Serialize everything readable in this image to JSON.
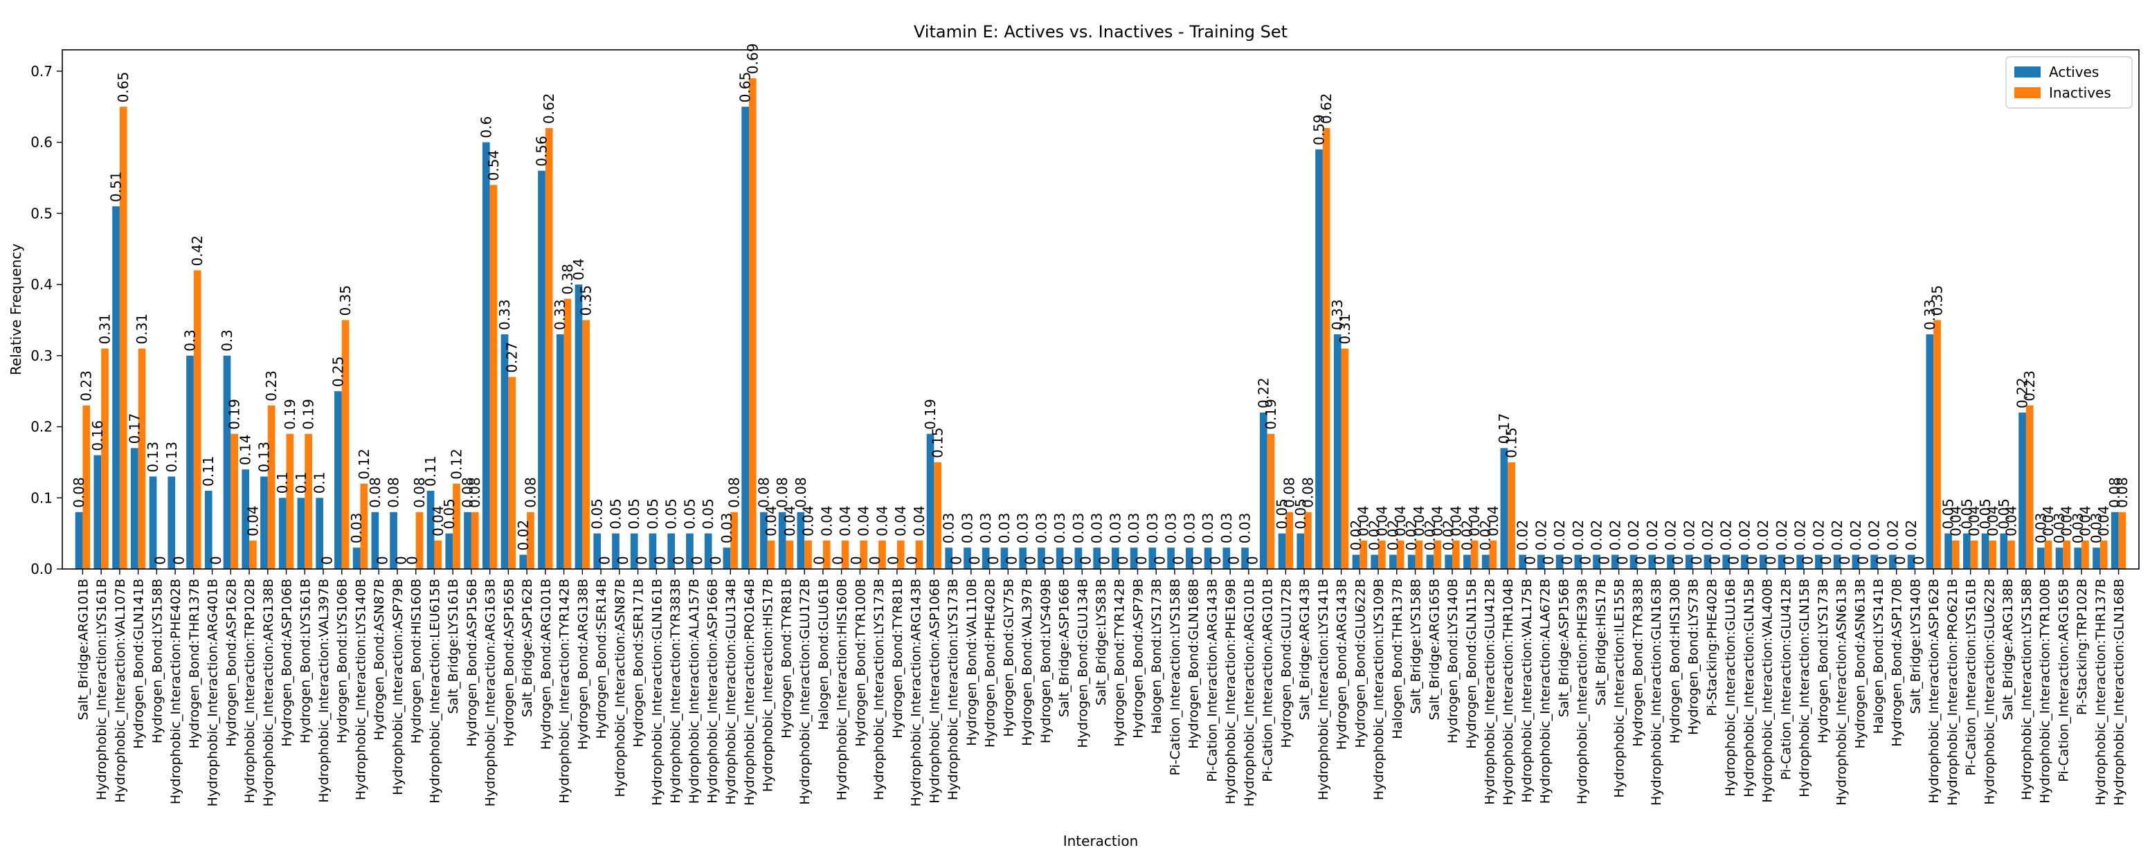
{
  "chart_data": {
    "type": "bar",
    "title": "Vitamin E: Actives vs. Inactives - Training Set",
    "xlabel": "Interaction",
    "ylabel": "Relative Frequency",
    "ylim": [
      0,
      0.73
    ],
    "yticks": [
      "0.0",
      "0.1",
      "0.2",
      "0.3",
      "0.4",
      "0.5",
      "0.6",
      "0.7"
    ],
    "grid": false,
    "legend_position": "top-right",
    "colors": {
      "Actives": "#1f77b4",
      "Inactives": "#ff7f0e"
    },
    "categories": [
      "Salt_Bridge:ARG101B",
      "Hydrophobic_Interaction:LYS161B",
      "Hydrophobic_Interaction:VAL107B",
      "Hydrogen_Bond:GLN141B",
      "Hydrogen_Bond:LYS158B",
      "Hydrophobic_Interaction:PHE402B",
      "Hydrogen_Bond:THR137B",
      "Hydrophobic_Interaction:ARG401B",
      "Hydrogen_Bond:ASP162B",
      "Hydrophobic_Interaction:TRP102B",
      "Hydrophobic_Interaction:ARG138B",
      "Hydrogen_Bond:ASP106B",
      "Hydrogen_Bond:LYS161B",
      "Hydrophobic_Interaction:VAL397B",
      "Hydrogen_Bond:LYS106B",
      "Hydrophobic_Interaction:LYS140B",
      "Hydrogen_Bond:ASN87B",
      "Hydrophobic_Interaction:ASP79B",
      "Hydrogen_Bond:HIS160B",
      "Hydrophobic_Interaction:LEU615B",
      "Salt_Bridge:LYS161B",
      "Hydrogen_Bond:ASP156B",
      "Hydrophobic_Interaction:ARG163B",
      "Hydrogen_Bond:ASP165B",
      "Salt_Bridge:ASP162B",
      "Hydrogen_Bond:ARG101B",
      "Hydrophobic_Interaction:TYR142B",
      "Hydrogen_Bond:ARG138B",
      "Hydrogen_Bond:SER14B",
      "Hydrophobic_Interaction:ASN87B",
      "Hydrogen_Bond:SER171B",
      "Hydrophobic_Interaction:GLN161B",
      "Hydrophobic_Interaction:TYR383B",
      "Hydrophobic_Interaction:ALA157B",
      "Hydrophobic_Interaction:ASP166B",
      "Hydrophobic_Interaction:GLU134B",
      "Hydrophobic_Interaction:PRO164B",
      "Hydrophobic_Interaction:HIS17B",
      "Hydrogen_Bond:TYR81B",
      "Hydrophobic_Interaction:GLU172B",
      "Halogen_Bond:GLU61B",
      "Hydrophobic_Interaction:HIS160B",
      "Hydrogen_Bond:TYR100B",
      "Hydrophobic_Interaction:LYS173B",
      "Hydrogen_Bond:TYR81B",
      "Hydrophobic_Interaction:ARG143B",
      "Hydrophobic_Interaction:ASP106B",
      "Hydrophobic_Interaction:LYS173B",
      "Hydrogen_Bond:VAL110B",
      "Hydrogen_Bond:PHE402B",
      "Hydrogen_Bond:GLY75B",
      "Hydrogen_Bond:VAL397B",
      "Hydrogen_Bond:LYS409B",
      "Salt_Bridge:ASP166B",
      "Hydrogen_Bond:GLU134B",
      "Salt_Bridge:LYS83B",
      "Hydrogen_Bond:TYR142B",
      "Hydrogen_Bond:ASP79B",
      "Halogen_Bond:LYS173B",
      "Pi-Cation_Interaction:LYS158B",
      "Hydrogen_Bond:GLN168B",
      "Pi-Cation_Interaction:ARG143B",
      "Hydrophobic_Interaction:PHE169B",
      "Hydrophobic_Interaction:ARG101B",
      "Pi-Cation_Interaction:ARG101B",
      "Hydrogen_Bond:GLU172B",
      "Salt_Bridge:ARG143B",
      "Hydrophobic_Interaction:LYS141B",
      "Hydrogen_Bond:ARG143B",
      "Hydrogen_Bond:GLU622B",
      "Hydrophobic_Interaction:LYS109B",
      "Halogen_Bond:THR137B",
      "Salt_Bridge:LYS158B",
      "Salt_Bridge:ARG165B",
      "Hydrogen_Bond:LYS140B",
      "Hydrogen_Bond:GLN115B",
      "Hydrophobic_Interaction:GLU412B",
      "Hydrophobic_Interaction:THR104B",
      "Hydrophobic_Interaction:VAL175B",
      "Hydrophobic_Interaction:ALA672B",
      "Salt_Bridge:ASP156B",
      "Hydrophobic_Interaction:PHE393B",
      "Salt_Bridge:HIS17B",
      "Hydrophobic_Interaction:ILE155B",
      "Hydrogen_Bond:TYR383B",
      "Hydrophobic_Interaction:GLN163B",
      "Hydrogen_Bond:HIS130B",
      "Hydrogen_Bond:LYS73B",
      "Pi-Stacking:PHE402B",
      "Hydrophobic_Interaction:GLU16B",
      "Hydrophobic_Interaction:GLN15B",
      "Hydrophobic_Interaction:VAL400B",
      "Pi-Cation_Interaction:GLU412B",
      "Hydrophobic_Interaction:GLN15B",
      "Hydrogen_Bond:LYS173B",
      "Hydrophobic_Interaction:ASN613B",
      "Hydrogen_Bond:ASN613B",
      "Halogen_Bond:LYS141B",
      "Hydrogen_Bond:ASP170B",
      "Salt_Bridge:LYS140B",
      "Hydrophobic_Interaction:ASP162B",
      "Hydrophobic_Interaction:PRO621B",
      "Pi-Cation_Interaction:LYS161B",
      "Hydrophobic_Interaction:GLU622B",
      "Salt_Bridge:ARG138B",
      "Hydrophobic_Interaction:LYS158B",
      "Hydrophobic_Interaction:TYR100B",
      "Pi-Cation_Interaction:ARG165B",
      "Pi-Stacking:TRP102B",
      "Hydrophobic_Interaction:THR137B",
      "Hydrophobic_Interaction:GLN168B"
    ],
    "series": [
      {
        "name": "Actives",
        "values": [
          0.08,
          0.16,
          0.51,
          0.17,
          0.13,
          0.13,
          0.3,
          0.11,
          0.3,
          0.14,
          0.13,
          0.1,
          0.1,
          0.1,
          0.25,
          0.03,
          0.08,
          0.08,
          0,
          0.11,
          0.05,
          0.08,
          0.6,
          0.33,
          0.02,
          0.56,
          0.33,
          0.4,
          0.05,
          0.05,
          0.05,
          0.05,
          0.05,
          0.05,
          0.05,
          0.03,
          0.65,
          0.08,
          0.08,
          0.08,
          0,
          0,
          0,
          0,
          0,
          0,
          0.19,
          0.03,
          0.03,
          0.03,
          0.03,
          0.03,
          0.03,
          0.03,
          0.03,
          0.03,
          0.03,
          0.03,
          0.03,
          0.03,
          0.03,
          0.03,
          0.03,
          0.03,
          0.22,
          0.05,
          0.05,
          0.59,
          0.33,
          0.02,
          0.02,
          0.02,
          0.02,
          0.02,
          0.02,
          0.02,
          0.02,
          0.17,
          0.02,
          0.02,
          0.02,
          0.02,
          0.02,
          0.02,
          0.02,
          0.02,
          0.02,
          0.02,
          0.02,
          0.02,
          0.02,
          0.02,
          0.02,
          0.02,
          0.02,
          0.02,
          0.02,
          0.02,
          0.02,
          0.02,
          0.33,
          0.05,
          0.05,
          0.05,
          0.05,
          0.22,
          0.03,
          0.03,
          0.03,
          0.03,
          0.08
        ]
      },
      {
        "name": "Inactives",
        "values": [
          0.23,
          0.31,
          0.65,
          0.31,
          0,
          0,
          0.42,
          0,
          0.19,
          0.04,
          0.23,
          0.19,
          0.19,
          0,
          0.35,
          0.12,
          0,
          0,
          0.08,
          0.04,
          0.12,
          0.08,
          0.54,
          0.27,
          0.08,
          0.62,
          0.38,
          0.35,
          0,
          0,
          0,
          0,
          0,
          0,
          0,
          0.08,
          0.69,
          0.04,
          0.04,
          0.04,
          0.04,
          0.04,
          0.04,
          0.04,
          0.04,
          0.04,
          0.15,
          0,
          0,
          0,
          0,
          0,
          0,
          0,
          0,
          0,
          0,
          0,
          0,
          0,
          0,
          0,
          0,
          0,
          0.19,
          0.08,
          0.08,
          0.62,
          0.31,
          0.04,
          0.04,
          0.04,
          0.04,
          0.04,
          0.04,
          0.04,
          0.04,
          0.15,
          0,
          0,
          0,
          0,
          0,
          0,
          0,
          0,
          0,
          0,
          0,
          0,
          0,
          0,
          0,
          0,
          0,
          0,
          0,
          0,
          0,
          0,
          0.35,
          0.04,
          0.04,
          0.04,
          0.04,
          0.23,
          0.04,
          0.04,
          0.04,
          0.04,
          0.08
        ]
      }
    ]
  }
}
